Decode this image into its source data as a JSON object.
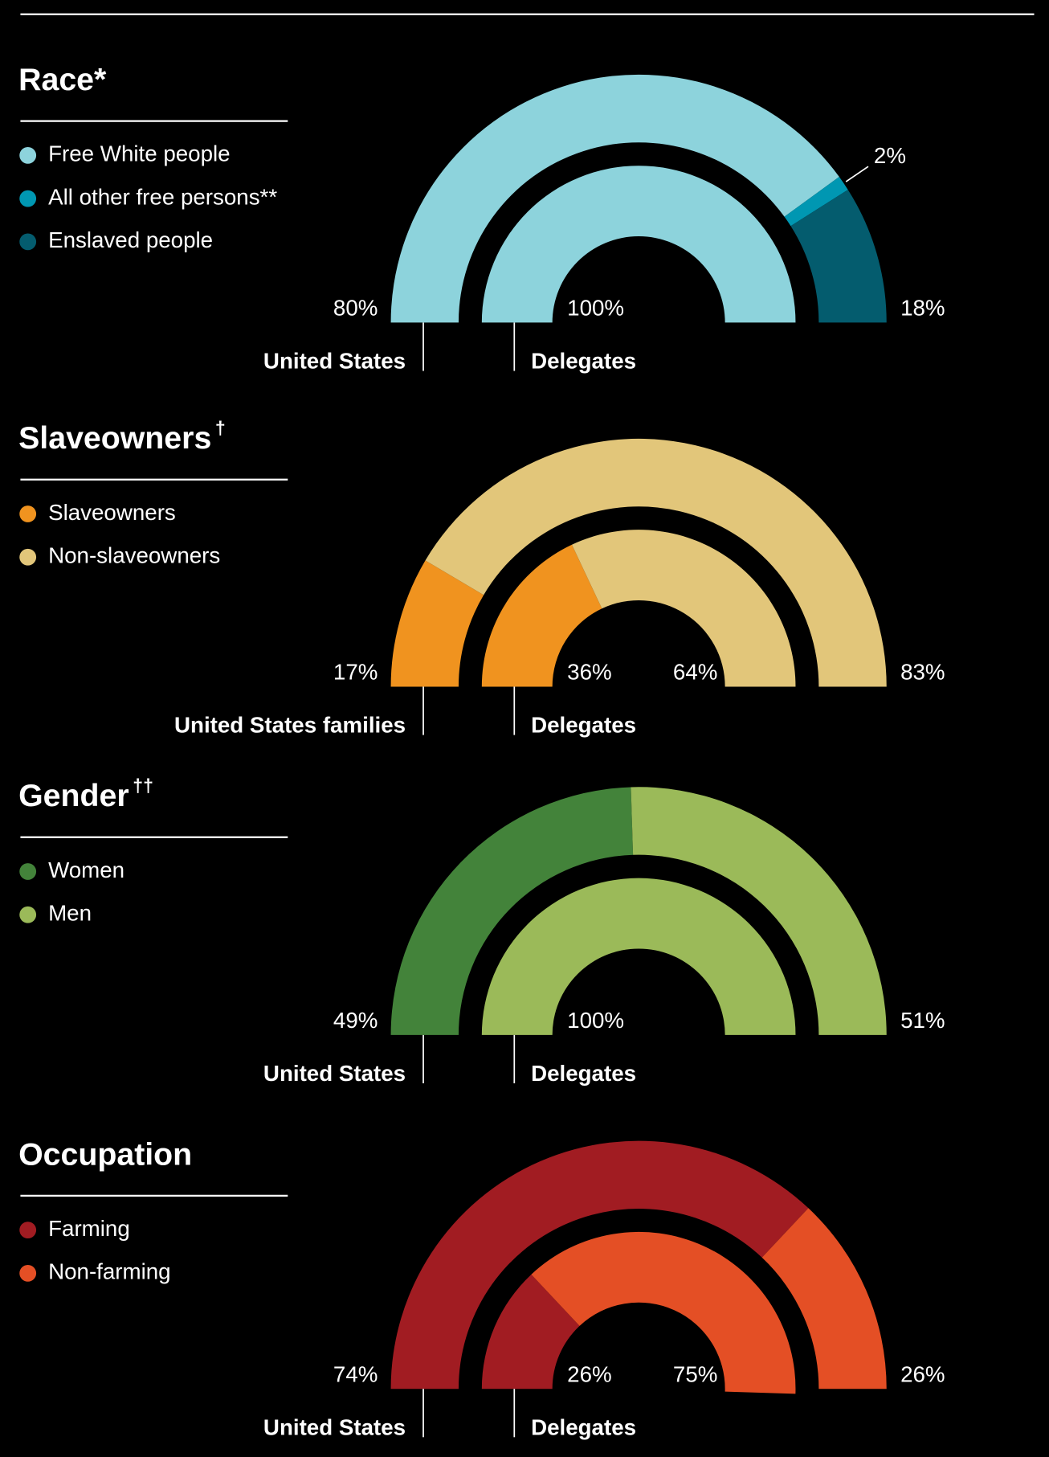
{
  "chart_data": [
    {
      "type": "half-donut",
      "title": "Race*",
      "series": [
        {
          "name": "Free White people",
          "color": "#8dd3dc"
        },
        {
          "name": "All other free persons**",
          "color": "#0097b2"
        },
        {
          "name": "Enslaved people",
          "color": "#045c6e"
        }
      ],
      "rings": [
        {
          "name": "United States",
          "values": [
            80,
            2,
            18
          ],
          "value_labels": [
            "80%",
            "2%",
            "18%"
          ]
        },
        {
          "name": "Delegates",
          "values": [
            100,
            null,
            null
          ],
          "value_labels": [
            "100%",
            null,
            null
          ]
        }
      ]
    },
    {
      "type": "half-donut",
      "title": "Slaveowners",
      "title_note": "†",
      "series": [
        {
          "name": "Slaveowners",
          "color": "#f0931f"
        },
        {
          "name": "Non-slaveowners",
          "color": "#e2c67a"
        }
      ],
      "rings": [
        {
          "name": "United States families",
          "values": [
            17,
            83
          ],
          "value_labels": [
            "17%",
            "83%"
          ]
        },
        {
          "name": "Delegates",
          "values": [
            36,
            64
          ],
          "value_labels": [
            "36%",
            "64%"
          ]
        }
      ]
    },
    {
      "type": "half-donut",
      "title": "Gender",
      "title_note": "††",
      "series": [
        {
          "name": "Women",
          "color": "#43833a"
        },
        {
          "name": "Men",
          "color": "#9bba59"
        }
      ],
      "rings": [
        {
          "name": "United States",
          "values": [
            49,
            51
          ],
          "value_labels": [
            "49%",
            "51%"
          ]
        },
        {
          "name": "Delegates",
          "values": [
            null,
            100
          ],
          "value_labels": [
            null,
            "100%"
          ]
        }
      ]
    },
    {
      "type": "half-donut",
      "title": "Occupation",
      "series": [
        {
          "name": "Farming",
          "color": "#a11c22"
        },
        {
          "name": "Non-farming",
          "color": "#e44f25"
        }
      ],
      "rings": [
        {
          "name": "United States",
          "values": [
            74,
            26
          ],
          "value_labels": [
            "74%",
            "26%"
          ]
        },
        {
          "name": "Delegates",
          "values": [
            26,
            75
          ],
          "value_labels": [
            "26%",
            "75%"
          ]
        }
      ]
    }
  ]
}
